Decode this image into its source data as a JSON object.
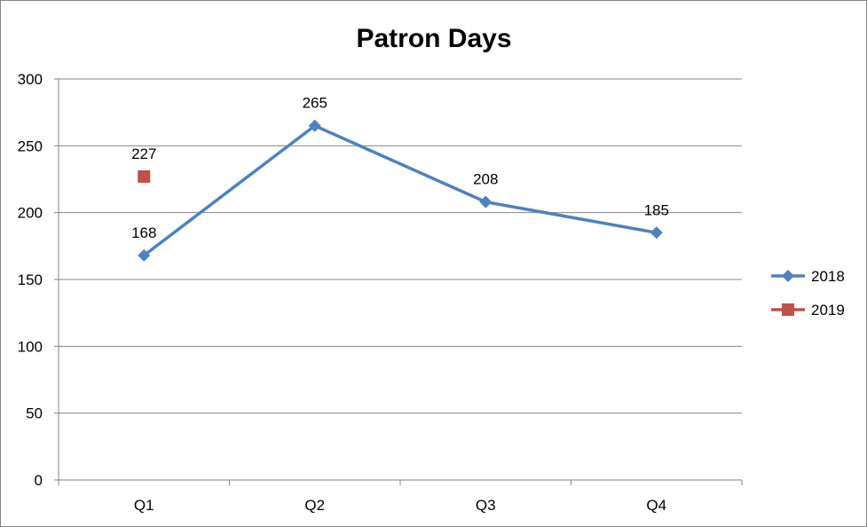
{
  "chart_data": {
    "type": "line",
    "title": "Patron Days",
    "xlabel": "",
    "ylabel": "",
    "categories": [
      "Q1",
      "Q2",
      "Q3",
      "Q4"
    ],
    "ylim": [
      0,
      300
    ],
    "yticks": [
      0,
      50,
      100,
      150,
      200,
      250,
      300
    ],
    "grid": true,
    "legend_position": "right",
    "series": [
      {
        "name": "2018",
        "values": [
          168,
          265,
          208,
          185
        ],
        "color": "#4F81BD",
        "marker": "diamond"
      },
      {
        "name": "2019",
        "values": [
          227,
          null,
          null,
          null
        ],
        "color": "#C0504D",
        "marker": "square"
      }
    ]
  }
}
